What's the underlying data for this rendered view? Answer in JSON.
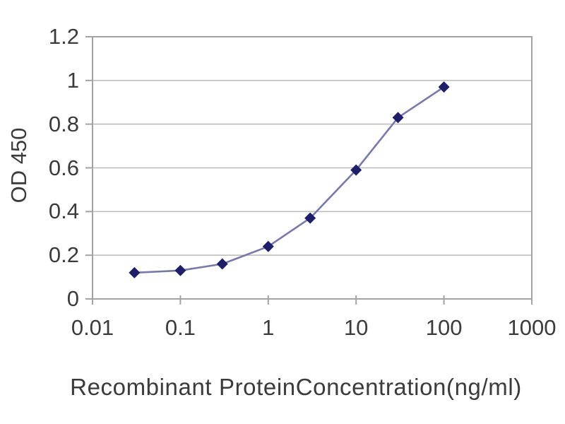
{
  "chart_data": {
    "type": "line",
    "x": [
      0.03,
      0.1,
      0.3,
      1,
      3,
      10,
      30,
      100
    ],
    "y": [
      0.12,
      0.13,
      0.16,
      0.24,
      0.37,
      0.59,
      0.83,
      0.97
    ],
    "title": "",
    "xlabel": "Recombinant ProteinConcentration(ng/ml)",
    "ylabel": "OD 450",
    "x_scale": "log",
    "xlim": [
      0.01,
      1000
    ],
    "ylim": [
      0,
      1.2
    ],
    "x_tick_values": [
      0.01,
      0.1,
      1,
      10,
      100,
      1000
    ],
    "x_tick_labels": [
      "0.01",
      "0.1",
      "1",
      "10",
      "100",
      "1000"
    ],
    "y_tick_values": [
      0,
      0.2,
      0.4,
      0.6,
      0.8,
      1,
      1.2
    ],
    "y_tick_labels": [
      "0",
      "0.2",
      "0.4",
      "0.6",
      "0.8",
      "1",
      "1.2"
    ],
    "grid": "horizontal",
    "legend_position": "none",
    "marker": "diamond",
    "colors": {
      "line": "#7878ab",
      "marker": "#1e1e69",
      "grid": "#bababa",
      "axis": "#a3a3a3",
      "text": "#3b3b3b",
      "background": "#ffffff"
    }
  }
}
